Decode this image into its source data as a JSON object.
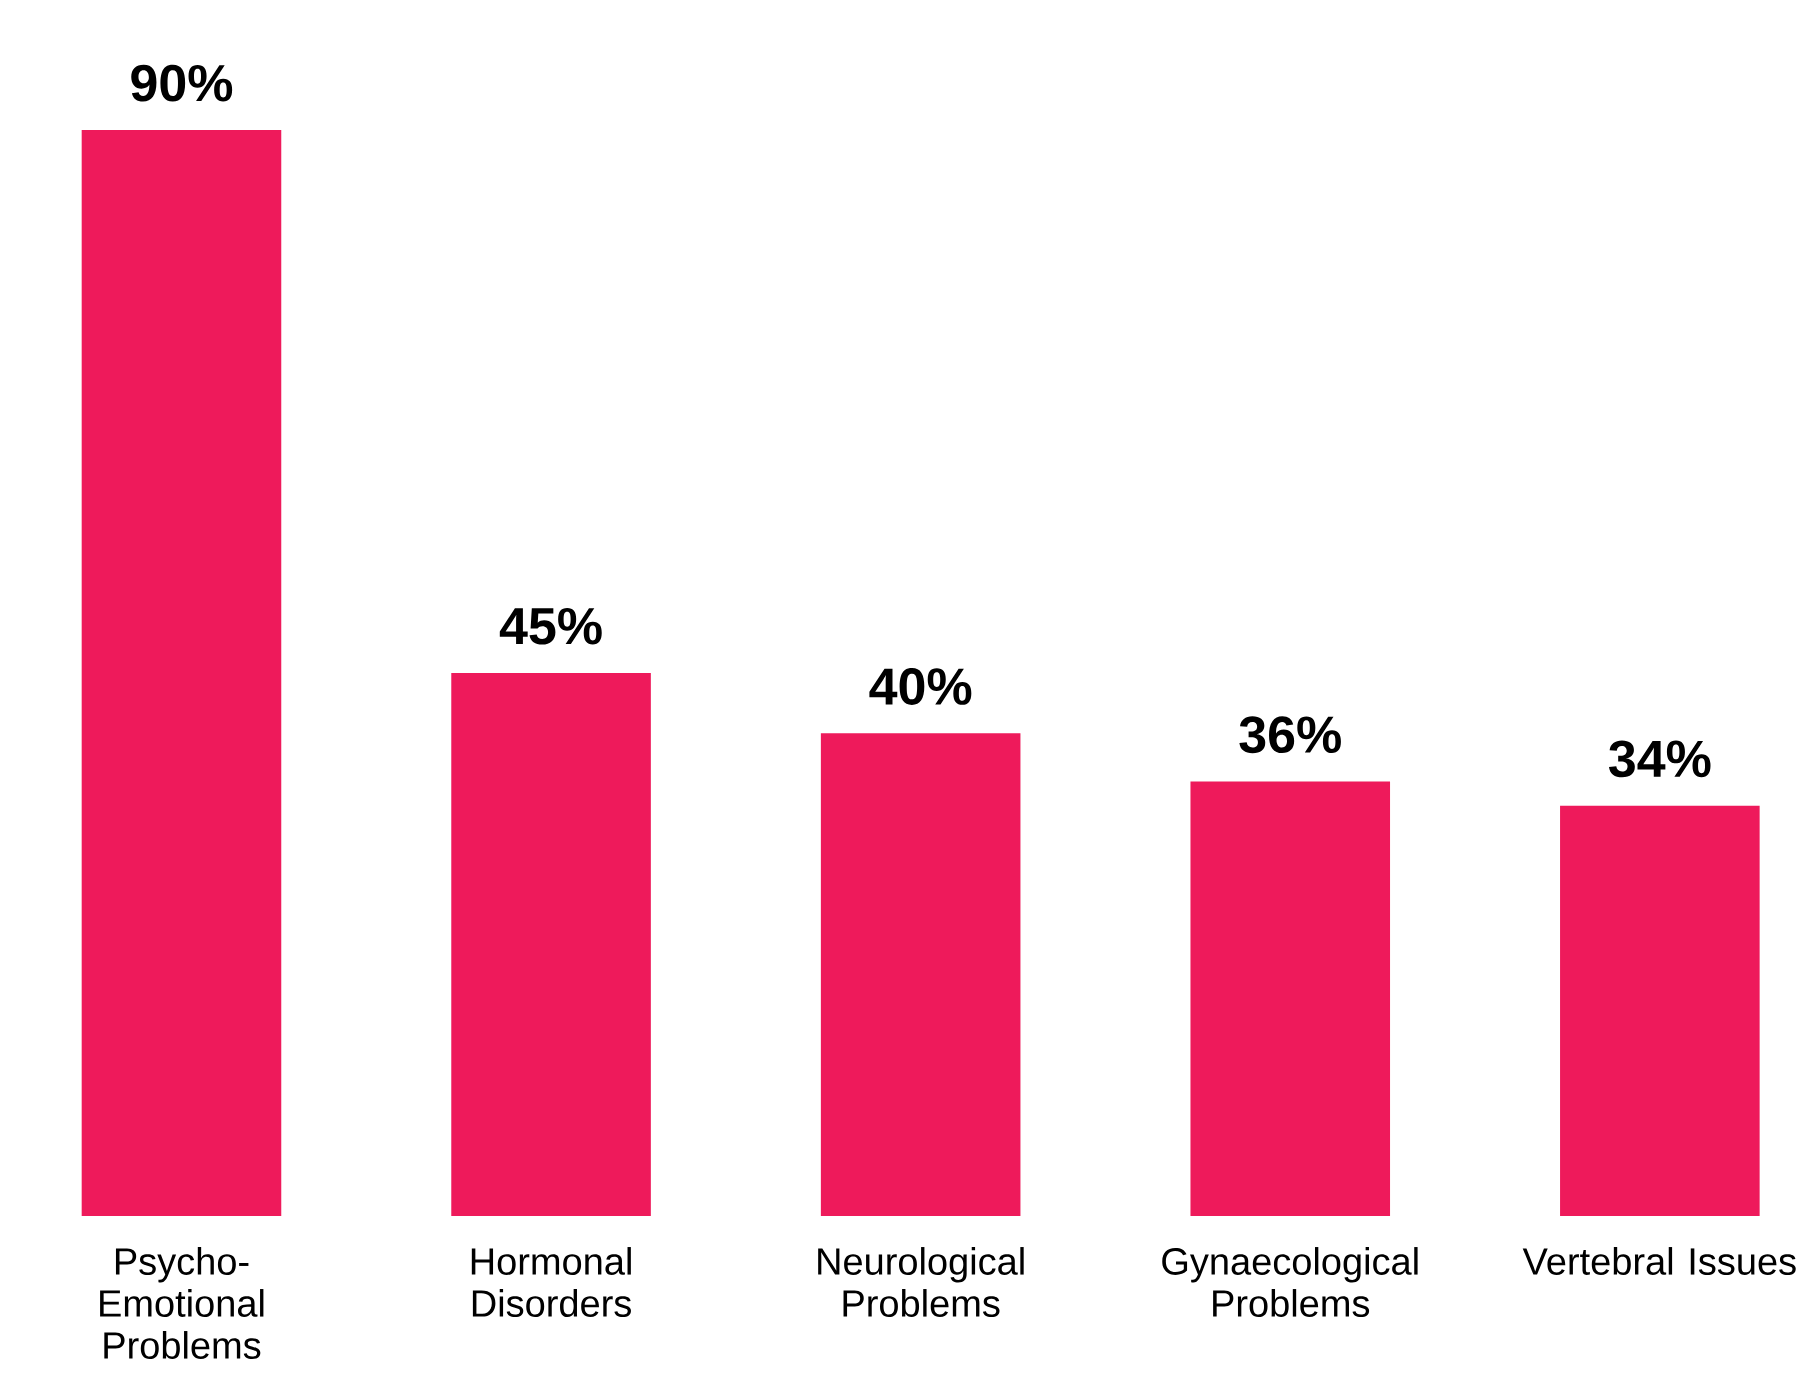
{
  "chart_data": {
    "type": "bar",
    "categories": [
      "Psycho-Emotional Problems",
      "Hormonal Disorders",
      "Neurological Problems",
      "Gynaecological Problems",
      "Vertebral Issues"
    ],
    "values": [
      90,
      45,
      40,
      36,
      34
    ],
    "value_labels": [
      "90%",
      "45%",
      "40%",
      "36%",
      "34%"
    ],
    "color": "#ee1a5b"
  }
}
